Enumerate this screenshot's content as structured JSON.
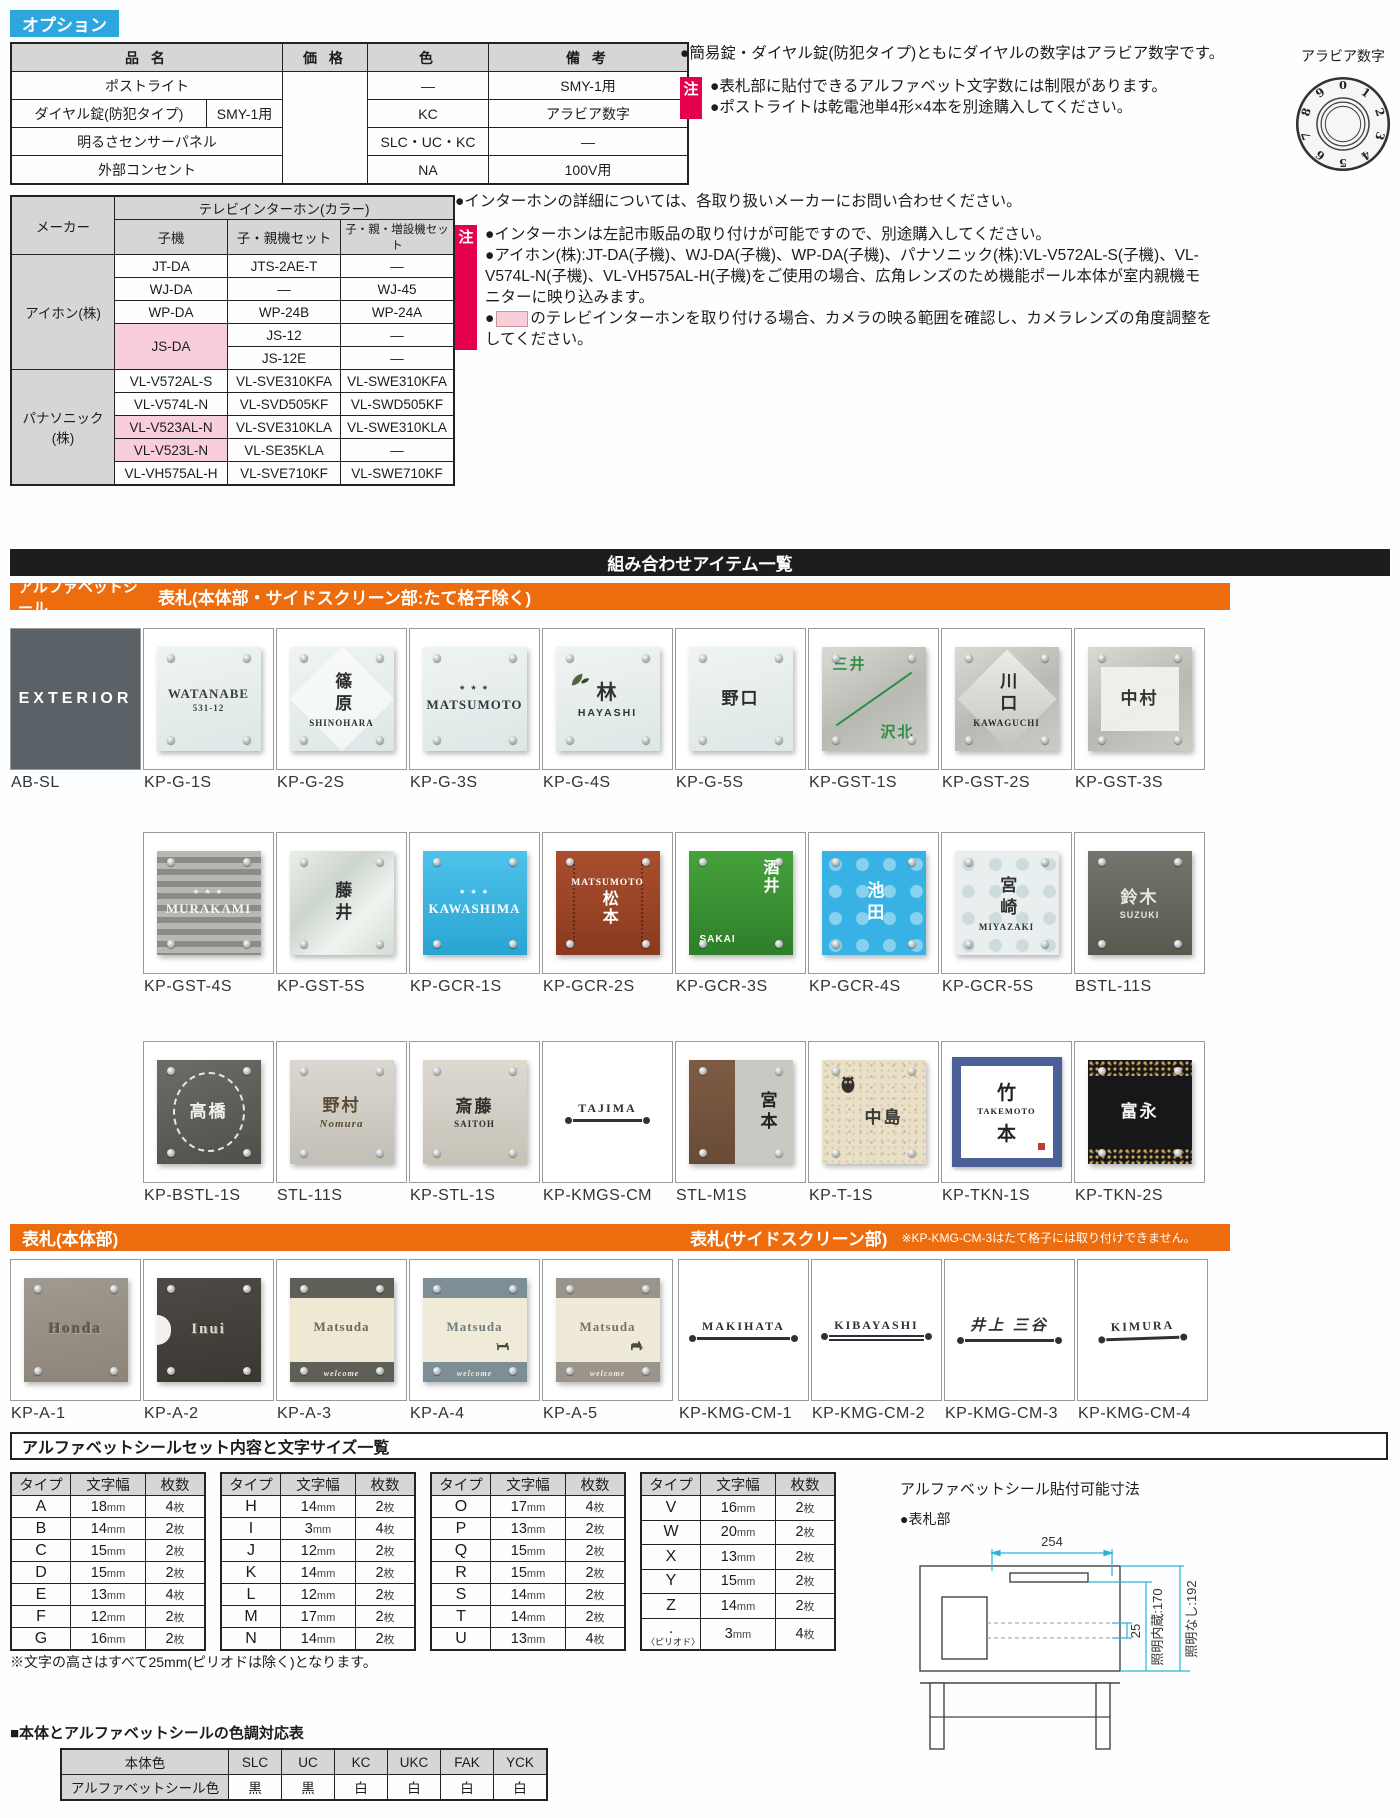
{
  "colors": {
    "accent_orange": "#EC6C0E",
    "accent_blue": "#2CA6DE",
    "accent_red": "#E5004E",
    "pink_cell": "#F9CEDB",
    "cyan_dim": "#2AB5D8",
    "black_bar": "#1D1D1D"
  },
  "options_section": {
    "tag": "オプション",
    "headers": [
      "品 名",
      "価 格",
      "色",
      "備 考"
    ],
    "rows": [
      {
        "name": "ポストライト",
        "name2": "",
        "color": "―",
        "note": "SMY-1用"
      },
      {
        "name": "ダイヤル錠(防犯タイプ)",
        "name2": "SMY-1用",
        "color": "KC",
        "note": "アラビア数字"
      },
      {
        "name": "明るさセンサーパネル",
        "name2": "",
        "color": "SLC・UC・KC",
        "note": "―"
      },
      {
        "name": "外部コンセント",
        "name2": "",
        "color": "NA",
        "note": "100V用"
      }
    ],
    "note1": "●簡易錠・ダイヤル錠(防犯タイプ)ともにダイヤルの数字はアラビア数字です。",
    "chu_label": "注",
    "chu1": "●表札部に貼付できるアルファベット文字数には制限があります。",
    "chu2": "●ポストライトは乾電池単4形×4本を別途購入してください。",
    "dial": {
      "label": "アラビア数字",
      "digits": "0123456789"
    }
  },
  "intercom": {
    "maker_h": "メーカー",
    "span_h": "テレビインターホン(カラー)",
    "cols": [
      "子機",
      "子・親機セット",
      "子・親・増設機セット"
    ],
    "makers": [
      "アイホン(株)",
      "パナソニック(株)"
    ],
    "rows": [
      {
        "c1": "JT-DA",
        "c2": "JTS-2AE-T",
        "c3": "―"
      },
      {
        "c1": "WJ-DA",
        "c2": "―",
        "c3": "WJ-45"
      },
      {
        "c1": "WP-DA",
        "c2": "WP-24B",
        "c3": "WP-24A"
      },
      {
        "c1": "JS-DA",
        "c2": "JS-12",
        "c3": "―"
      },
      {
        "c2": "JS-12E",
        "c3": "―"
      },
      {
        "c1": "VL-V572AL-S",
        "c2": "VL-SVE310KFA",
        "c3": "VL-SWE310KFA"
      },
      {
        "c1": "VL-V574L-N",
        "c2": "VL-SVD505KF",
        "c3": "VL-SWD505KF"
      },
      {
        "c1": "VL-V523AL-N",
        "c2": "VL-SVE310KLA",
        "c3": "VL-SWE310KLA"
      },
      {
        "c1": "VL-V523L-N",
        "c2": "VL-SE35KLA",
        "c3": "―"
      },
      {
        "c1": "VL-VH575AL-H",
        "c2": "VL-SVE710KF",
        "c3": "VL-SWE710KF"
      }
    ],
    "note0": "●インターホンの詳細については、各取り扱いメーカーにお問い合わせください。",
    "chu_label": "注",
    "n1": "●インターホンは左記市販品の取り付けが可能ですので、別途購入してください。",
    "n2": "●アイホン(株):JT-DA(子機)、WJ-DA(子機)、WP-DA(子機)、パナソニック(株):VL-V572AL-S(子機)、VL-V574L-N(子機)、VL-VH575AL-H(子機)をご使用の場合、広角レンズのため機能ポール本体が室内親機モニターに映り込みます。",
    "n3_pre": "●",
    "n3_post": "のテレビインターホンを取り付ける場合、カメラの映る範囲を確認し、カメラレンズの角度調整をしてください。"
  },
  "bars": {
    "combo": "組み合わせアイテム一覧",
    "alpha": "アルファベットシール",
    "hyosatsu": "表札(本体部・サイドスクリーン部:たて格子除く)",
    "honbu": "表札(本体部)",
    "side": "表札(サイドスクリーン部)",
    "side_note": "※KP-KMG-CM-3はたて格子には取り付けできません。"
  },
  "products": {
    "row1": [
      {
        "code": "AB-SL",
        "variant": "v-ab pins0",
        "bg": "#5a6167",
        "fg": "#ffffff",
        "main": "EXTERIOR"
      },
      {
        "code": "KP-G-1S",
        "variant": "m-serif",
        "fg": "#3a3f3f",
        "main": "WATANABE",
        "sub": "531-12"
      },
      {
        "code": "KP-G-2S",
        "variant": "v-diamond v-vert",
        "fg": "#2e2e2e",
        "main": "篠原",
        "sub": "SHINOHARA"
      },
      {
        "code": "KP-G-3S",
        "variant": "m-serif",
        "fg": "#33383a",
        "orn": "* * *",
        "main": "MATSUMOTO"
      },
      {
        "code": "KP-G-4S",
        "variant": "v-leaf",
        "fg": "#2f3430",
        "main": "林",
        "sub": "HAYASHI"
      },
      {
        "code": "KP-G-5S",
        "variant": "",
        "fg": "#2c2c2c",
        "main": "野口"
      },
      {
        "code": "KP-GST-1S",
        "variant": "v-steel v-split",
        "fg": "#2f8c45",
        "main": "三井",
        "sub": "沢北"
      },
      {
        "code": "KP-GST-2S",
        "variant": "v-steel v-steel-diamond v-vert",
        "fg": "#2b2b2b",
        "main": "川口",
        "sub": "KAWAGUCHI"
      },
      {
        "code": "KP-GST-3S",
        "variant": "v-steel v-centerpane",
        "fg": "#333333",
        "main": "中村"
      }
    ],
    "row2": [
      {
        "code": "KP-GST-4S",
        "variant": "v-stripes m-serif",
        "fg": "#f5f5f2",
        "orn": "* * *",
        "main": "MURAKAMI"
      },
      {
        "code": "KP-GST-5S",
        "variant": "v-mirror v-vert",
        "fg": "#2e2e2e",
        "main": "藤井"
      },
      {
        "code": "KP-GCR-1S",
        "variant": "m-serif",
        "bg": "linear-gradient(180deg,#4ec2ea,#29a5d2)",
        "fg": "#ffffff",
        "orn": "* * *",
        "main": "KAWASHIMA"
      },
      {
        "code": "KP-GCR-2S",
        "variant": "v-matsu",
        "bg": "linear-gradient(180deg,#aa4f2e,#8a3a1f)",
        "fg": "#ffffff",
        "orn": "MATSUMOTO",
        "main": "松本"
      },
      {
        "code": "KP-GCR-3S",
        "variant": "v-sakai",
        "bg": "linear-gradient(180deg,#46a23c,#2e7f29)",
        "fg": "#ffffff",
        "main": "酒井",
        "sub": "SAKAI"
      },
      {
        "code": "KP-GCR-4S",
        "variant": "v-dots v-vert",
        "bg": "#38b2e4",
        "fg": "#ffffff",
        "main": "池田"
      },
      {
        "code": "KP-GCR-5S",
        "variant": "v-dots2 v-vert",
        "bg": "#e9efef",
        "fg": "#333333",
        "main": "宮崎",
        "sub": "MIYAZAKI"
      },
      {
        "code": "BSTL-11S",
        "variant": "v-darksteel",
        "bg": "linear-gradient(180deg,#75756d,#595950)",
        "fg": "#e8e8e2",
        "main": "鈴木",
        "sub": "SUZUKI"
      }
    ],
    "row3": [
      {
        "code": "KP-BSTL-1S",
        "variant": "v-darksteel v-wreath",
        "bg": "linear-gradient(160deg,#6b6d66,#4e4f49)",
        "fg": "#f0f0ea",
        "main": "高橋"
      },
      {
        "code": "STL-11S",
        "variant": "sub-script",
        "bg": "linear-gradient(180deg,#d9d7cf,#c2c0b6)",
        "fg": "#5b4a33",
        "main": "野村",
        "sub": "Nomura"
      },
      {
        "code": "KP-STL-1S",
        "variant": "",
        "bg": "linear-gradient(180deg,#ddd9d0,#c6c2b8)",
        "fg": "#2f2f2f",
        "main": "斎藤",
        "sub": "SAITOH"
      },
      {
        "code": "KP-KMGS-CM",
        "variant": "v-iron pins0",
        "main": "TAJIMA"
      },
      {
        "code": "STL-M1S",
        "variant": "v-twotone",
        "bg": "#c9c8c3",
        "fg": "#222222",
        "main": "宮本"
      },
      {
        "code": "KP-T-1S",
        "variant": "v-ceramic v-owl",
        "fg": "#3a3a38",
        "main": "中島"
      },
      {
        "code": "KP-TKN-1S",
        "variant": "v-takemoto pins0",
        "fg": "#222222",
        "orn": "竹",
        "main": "TAKEMOTO",
        "sub": "本"
      },
      {
        "code": "KP-TKN-2S",
        "variant": "v-gold",
        "bg": "#17171a",
        "fg": "#f2f2ee",
        "main": "富永"
      }
    ],
    "row4": [
      {
        "code": "KP-A-1",
        "variant": "v-stone m-serif",
        "bg": "linear-gradient(170deg,#a09a90,#8d8379)",
        "fg": "#5f574a",
        "main": "Honda"
      },
      {
        "code": "KP-A-2",
        "variant": "v-stone v-notch m-serif",
        "bg": "linear-gradient(170deg,#4e4944,#3b3733)",
        "fg": "#ddd5c6",
        "main": "Inui"
      },
      {
        "code": "KP-A-3",
        "variant": "v-bands m-serif",
        "band": "#5f5f57",
        "bg": "#efe9d4",
        "fg": "#6f675a",
        "main": "Matsuda",
        "sub": "welcome"
      },
      {
        "code": "KP-A-4",
        "variant": "v-bands v-dog m-serif",
        "band": "#7e8e96",
        "bg": "#f0ebd8",
        "fg": "#707a80",
        "main": "Matsuda",
        "sub": "welcome"
      },
      {
        "code": "KP-A-5",
        "variant": "v-bands v-cat m-serif",
        "band": "#9a948a",
        "bg": "#efe9da",
        "fg": "#7a7468",
        "main": "Matsuda",
        "sub": "welcome"
      }
    ],
    "row5": [
      {
        "code": "KP-KMG-CM-1",
        "variant": "v-iron pins0",
        "main": "MAKIHATA"
      },
      {
        "code": "KP-KMG-CM-2",
        "variant": "v-iron v-iron2 pins0",
        "main": "KIBAYASHI"
      },
      {
        "code": "KP-KMG-CM-3",
        "variant": "v-iron v-ironjp pins0",
        "main": "井上 三谷"
      },
      {
        "code": "KP-KMG-CM-4",
        "variant": "v-iron v-ironbr pins0",
        "main": "KIMURA"
      }
    ]
  },
  "letters": {
    "title": "アルファベットシールセット内容と文字サイズ一覧",
    "headers": [
      "タイプ",
      "文字幅",
      "枚数"
    ],
    "unit_w": "mm",
    "unit_n": "枚",
    "tables": [
      {
        "rows": [
          {
            "t": "A",
            "w": "18",
            "n": "4"
          },
          {
            "t": "B",
            "w": "14",
            "n": "2"
          },
          {
            "t": "C",
            "w": "15",
            "n": "2"
          },
          {
            "t": "D",
            "w": "15",
            "n": "2"
          },
          {
            "t": "E",
            "w": "13",
            "n": "4"
          },
          {
            "t": "F",
            "w": "12",
            "n": "2"
          },
          {
            "t": "G",
            "w": "16",
            "n": "2"
          }
        ]
      },
      {
        "rows": [
          {
            "t": "H",
            "w": "14",
            "n": "2"
          },
          {
            "t": "I",
            "w": "3",
            "n": "4"
          },
          {
            "t": "J",
            "w": "12",
            "n": "2"
          },
          {
            "t": "K",
            "w": "14",
            "n": "2"
          },
          {
            "t": "L",
            "w": "12",
            "n": "2"
          },
          {
            "t": "M",
            "w": "17",
            "n": "2"
          },
          {
            "t": "N",
            "w": "14",
            "n": "2"
          }
        ]
      },
      {
        "rows": [
          {
            "t": "O",
            "w": "17",
            "n": "4"
          },
          {
            "t": "P",
            "w": "13",
            "n": "2"
          },
          {
            "t": "Q",
            "w": "15",
            "n": "2"
          },
          {
            "t": "R",
            "w": "15",
            "n": "2"
          },
          {
            "t": "S",
            "w": "14",
            "n": "2"
          },
          {
            "t": "T",
            "w": "14",
            "n": "2"
          },
          {
            "t": "U",
            "w": "13",
            "n": "4"
          }
        ]
      },
      {
        "rows": [
          {
            "t": "V",
            "w": "16",
            "n": "2"
          },
          {
            "t": "W",
            "w": "20",
            "n": "2"
          },
          {
            "t": "X",
            "w": "13",
            "n": "2"
          },
          {
            "t": "Y",
            "w": "15",
            "n": "2"
          },
          {
            "t": "Z",
            "w": "14",
            "n": "2"
          },
          {
            "t": ".",
            "tnote": "〈ピリオド〉",
            "w": "3",
            "n": "4"
          }
        ]
      }
    ],
    "note": "※文字の高さはすべて25mm(ピリオドは除く)となります。"
  },
  "diagram": {
    "title": "アルファベットシール貼付可能寸法",
    "part": "●表札部",
    "dim_top": "254",
    "dim_small": "25",
    "dim_lit": "照明内蔵:170",
    "dim_unlit": "照明なし:192"
  },
  "colortable": {
    "title": "■本体とアルファベットシールの色調対応表",
    "row1_label": "本体色",
    "row2_label": "アルファベットシール色",
    "cols": [
      "SLC",
      "UC",
      "KC",
      "UKC",
      "FAK",
      "YCK"
    ],
    "vals": [
      "黒",
      "黒",
      "白",
      "白",
      "白",
      "白"
    ]
  }
}
